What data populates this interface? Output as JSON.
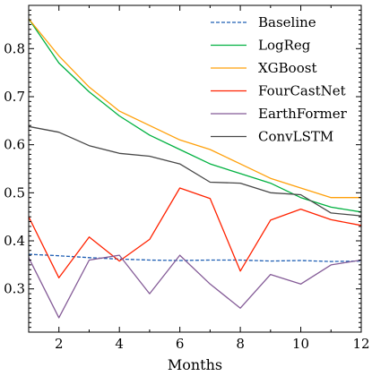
{
  "chart_data": {
    "type": "line",
    "title": "",
    "xlabel": "Months",
    "ylabel": "",
    "xlim": [
      1,
      12
    ],
    "ylim": [
      0.21,
      0.89
    ],
    "xticks": [
      2,
      4,
      6,
      8,
      10,
      12
    ],
    "yticks": [
      0.3,
      0.4,
      0.5,
      0.6,
      0.7,
      0.8
    ],
    "ytick_labels": [
      "0.3",
      "0.4",
      "0.5",
      "0.6",
      "0.7",
      "0.8"
    ],
    "grid": false,
    "legend_position": "top-right",
    "x": [
      1,
      2,
      3,
      4,
      5,
      6,
      7,
      8,
      9,
      10,
      11,
      12
    ],
    "series": [
      {
        "name": "Baseline",
        "color": "#1f5fb4",
        "dashed": true,
        "values": [
          0.372,
          0.369,
          0.365,
          0.362,
          0.36,
          0.359,
          0.36,
          0.36,
          0.358,
          0.359,
          0.357,
          0.358
        ]
      },
      {
        "name": "LogReg",
        "color": "#00b140",
        "dashed": false,
        "values": [
          0.862,
          0.77,
          0.71,
          0.66,
          0.62,
          0.59,
          0.56,
          0.54,
          0.52,
          0.49,
          0.47,
          0.46
        ]
      },
      {
        "name": "XGBoost",
        "color": "#ffa00a",
        "dashed": false,
        "values": [
          0.862,
          0.785,
          0.72,
          0.67,
          0.64,
          0.61,
          0.59,
          0.56,
          0.53,
          0.51,
          0.49,
          0.49
        ]
      },
      {
        "name": "FourCastNet",
        "color": "#ff2200",
        "dashed": false,
        "values": [
          0.45,
          0.323,
          0.408,
          0.358,
          0.403,
          0.51,
          0.488,
          0.337,
          0.443,
          0.466,
          0.444,
          0.432
        ]
      },
      {
        "name": "EarthFormer",
        "color": "#845b97",
        "dashed": false,
        "values": [
          0.365,
          0.24,
          0.36,
          0.37,
          0.29,
          0.37,
          0.31,
          0.26,
          0.33,
          0.31,
          0.35,
          0.36
        ]
      },
      {
        "name": "ConvLSTM",
        "color": "#474747",
        "dashed": false,
        "values": [
          0.638,
          0.626,
          0.598,
          0.582,
          0.576,
          0.56,
          0.522,
          0.52,
          0.5,
          0.496,
          0.458,
          0.452
        ]
      }
    ]
  }
}
